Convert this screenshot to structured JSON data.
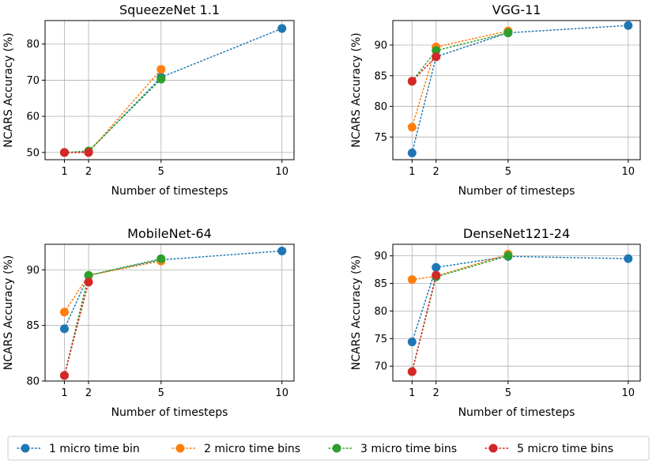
{
  "chart_data": [
    {
      "type": "line",
      "title": "SqueezeNet 1.1",
      "xlabel": "Number of timesteps",
      "ylabel": "NCARS Accuracy (%)",
      "x": [
        1,
        2,
        5,
        10
      ],
      "xticks": [
        1,
        2,
        5,
        10
      ],
      "yticks": [
        50,
        60,
        70,
        80
      ],
      "xlim": [
        0.2,
        10.5
      ],
      "ylim": [
        48.0,
        86.5
      ],
      "grid": true,
      "series": [
        {
          "name": "1 micro time bin",
          "x": [
            1,
            2,
            5,
            10
          ],
          "values": [
            50.0,
            50.2,
            70.8,
            84.3
          ]
        },
        {
          "name": "2 micro time bins",
          "x": [
            1,
            2,
            5
          ],
          "values": [
            50.0,
            50.0,
            73.0
          ]
        },
        {
          "name": "3 micro time bins",
          "x": [
            1,
            2,
            5
          ],
          "values": [
            50.0,
            50.4,
            70.3
          ]
        },
        {
          "name": "5 micro time bins",
          "x": [
            1,
            2
          ],
          "values": [
            50.0,
            50.0
          ]
        }
      ]
    },
    {
      "type": "line",
      "title": "VGG-11",
      "xlabel": "Number of timesteps",
      "ylabel": "NCARS Accuracy (%)",
      "x": [
        1,
        2,
        5,
        10
      ],
      "xticks": [
        1,
        2,
        5,
        10
      ],
      "yticks": [
        75,
        80,
        85,
        90
      ],
      "xlim": [
        0.2,
        10.5
      ],
      "ylim": [
        71.3,
        94.0
      ],
      "grid": true,
      "series": [
        {
          "name": "1 micro time bin",
          "x": [
            1,
            2,
            5,
            10
          ],
          "values": [
            72.4,
            88.1,
            92.0,
            93.2
          ]
        },
        {
          "name": "2 micro time bins",
          "x": [
            1,
            2,
            5
          ],
          "values": [
            76.6,
            89.7,
            92.3
          ]
        },
        {
          "name": "3 micro time bins",
          "x": [
            1,
            2,
            5
          ],
          "values": [
            84.1,
            89.1,
            92.0
          ]
        },
        {
          "name": "5 micro time bins",
          "x": [
            1,
            2
          ],
          "values": [
            84.1,
            88.1
          ]
        }
      ]
    },
    {
      "type": "line",
      "title": "MobileNet-64",
      "xlabel": "Number of timesteps",
      "ylabel": "NCARS Accuracy (%)",
      "x": [
        1,
        2,
        5,
        10
      ],
      "xticks": [
        1,
        2,
        5,
        10
      ],
      "yticks": [
        80,
        85,
        90
      ],
      "xlim": [
        0.2,
        10.5
      ],
      "ylim": [
        80.0,
        92.3
      ],
      "grid": true,
      "series": [
        {
          "name": "1 micro time bin",
          "x": [
            1,
            2,
            5,
            10
          ],
          "values": [
            84.7,
            89.5,
            90.9,
            91.7
          ]
        },
        {
          "name": "2 micro time bins",
          "x": [
            1,
            2,
            5
          ],
          "values": [
            86.2,
            89.5,
            90.8
          ]
        },
        {
          "name": "3 micro time bins",
          "x": [
            1,
            2,
            5
          ],
          "values": [
            80.5,
            89.5,
            91.0
          ]
        },
        {
          "name": "5 micro time bins",
          "x": [
            1,
            2
          ],
          "values": [
            80.5,
            88.9
          ]
        }
      ]
    },
    {
      "type": "line",
      "title": "DenseNet121-24",
      "xlabel": "Number of timesteps",
      "ylabel": "NCARS Accuracy (%)",
      "x": [
        1,
        2,
        5,
        10
      ],
      "xticks": [
        1,
        2,
        5,
        10
      ],
      "yticks": [
        70,
        75,
        80,
        85,
        90
      ],
      "xlim": [
        0.2,
        10.5
      ],
      "ylim": [
        67.3,
        92.1
      ],
      "grid": true,
      "series": [
        {
          "name": "1 micro time bin",
          "x": [
            1,
            2,
            5,
            10
          ],
          "values": [
            74.4,
            87.9,
            89.9,
            89.5
          ]
        },
        {
          "name": "2 micro time bins",
          "x": [
            1,
            2,
            5
          ],
          "values": [
            85.7,
            86.3,
            90.3
          ]
        },
        {
          "name": "3 micro time bins",
          "x": [
            1,
            2,
            5
          ],
          "values": [
            69.0,
            86.2,
            90.0
          ]
        },
        {
          "name": "5 micro time bins",
          "x": [
            1,
            2
          ],
          "values": [
            69.0,
            86.5
          ]
        }
      ]
    }
  ],
  "legend": {
    "entries": [
      "1 micro time bin",
      "2 micro time bins",
      "3 micro time bins",
      "5 micro time bins"
    ],
    "colors": [
      "#1f77b4",
      "#ff7f0e",
      "#2ca02c",
      "#d62728"
    ]
  }
}
